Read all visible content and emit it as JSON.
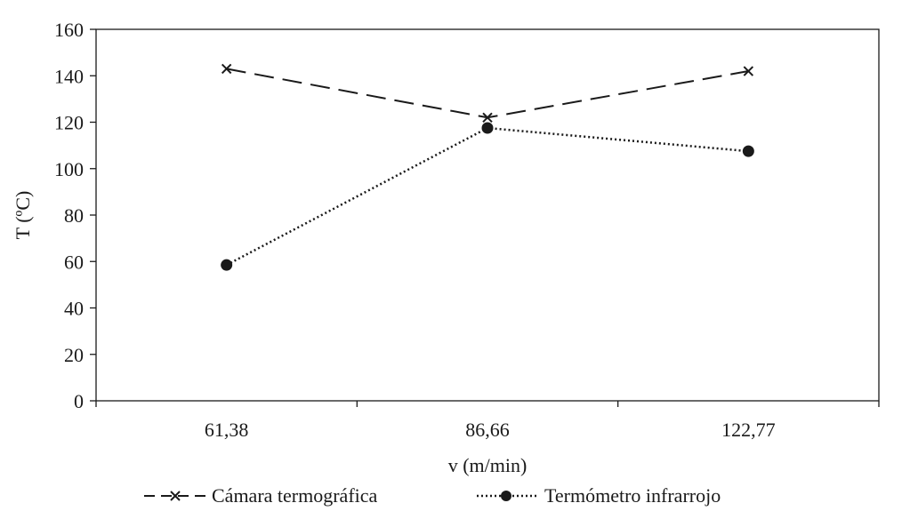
{
  "chart_data": {
    "type": "line",
    "title": "",
    "xlabel": "v (m/min)",
    "ylabel": "T (ºC)",
    "categories": [
      "61,38",
      "86,66",
      "122,77"
    ],
    "ylim": [
      0,
      160
    ],
    "yticks": [
      0,
      20,
      40,
      60,
      80,
      100,
      120,
      140,
      160
    ],
    "grid": false,
    "legend_position": "bottom",
    "series": [
      {
        "name": "Cámara termográfica",
        "values": [
          143,
          122,
          142
        ],
        "marker": "x",
        "line": "dashed",
        "color": "#1a1a1a"
      },
      {
        "name": "Termómetro infrarrojo",
        "values": [
          58.5,
          117.5,
          107.5
        ],
        "marker": "circle",
        "line": "dotted",
        "color": "#1a1a1a"
      }
    ]
  }
}
